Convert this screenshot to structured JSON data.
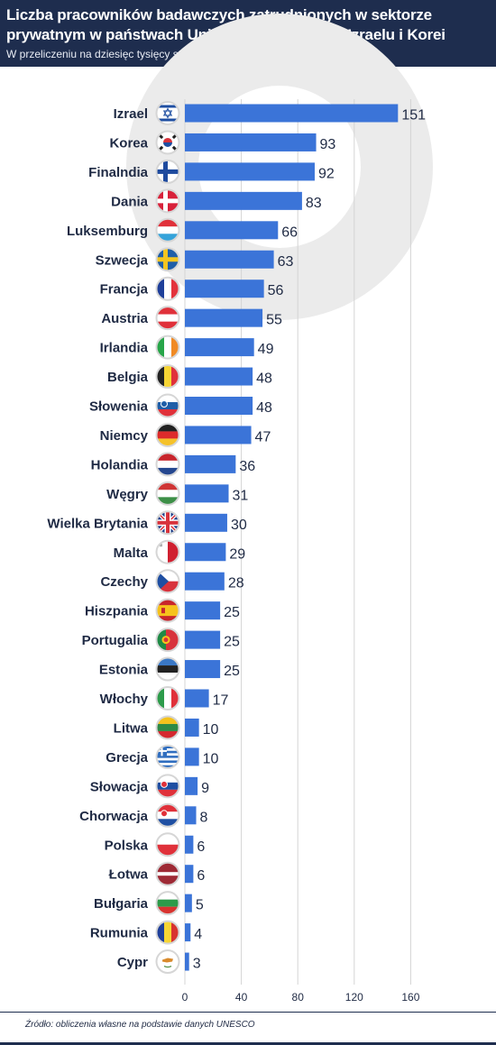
{
  "title": "Liczba pracowników badawczych zatrudnionych w sektorze prywatnym w państwach Unii Europejskiej oraz Izraelu i Korei",
  "subtitle": "W przeliczeniu na dziesięc tysięcy stanowisk pracy w 2011 roku",
  "source": "Źródło: obliczenia własne na podstawie danych UNESCO",
  "colors": {
    "bar": "#3b74d8",
    "header_bg": "#1e2d4e",
    "label": "#1f2a44",
    "grid": "#d4d4d4"
  },
  "chart_data": {
    "type": "bar",
    "orientation": "horizontal",
    "title": "Liczba pracowników badawczych zatrudnionych w sektorze prywatnym w państwach Unii Europejskiej oraz Izraelu i Korei",
    "subtitle": "W przeliczeniu na dziesięc tysięcy stanowisk pracy w 2011 roku",
    "xlabel": "",
    "ylabel": "",
    "xlim": [
      0,
      160
    ],
    "x_ticks": [
      0,
      40,
      80,
      120,
      160
    ],
    "grid": true,
    "categories": [
      "Izrael",
      "Korea",
      "Finalndia",
      "Dania",
      "Luksemburg",
      "Szwecja",
      "Francja",
      "Austria",
      "Irlandia",
      "Belgia",
      "Słowenia",
      "Niemcy",
      "Holandia",
      "Węgry",
      "Wielka Brytania",
      "Malta",
      "Czechy",
      "Hiszpania",
      "Portugalia",
      "Estonia",
      "Włochy",
      "Litwa",
      "Grecja",
      "Słowacja",
      "Chorwacja",
      "Polska",
      "Łotwa",
      "Bułgaria",
      "Rumunia",
      "Cypr"
    ],
    "values": [
      151,
      93,
      92,
      83,
      66,
      63,
      56,
      55,
      49,
      48,
      48,
      47,
      36,
      31,
      30,
      29,
      28,
      25,
      25,
      25,
      17,
      10,
      10,
      9,
      8,
      6,
      6,
      5,
      4,
      3
    ],
    "flags": [
      "israel-flag",
      "south-korea-flag",
      "finland-flag",
      "denmark-flag",
      "luxembourg-flag",
      "sweden-flag",
      "france-flag",
      "austria-flag",
      "ireland-flag",
      "belgium-flag",
      "slovenia-flag",
      "germany-flag",
      "netherlands-flag",
      "hungary-flag",
      "united-kingdom-flag",
      "malta-flag",
      "czech-flag",
      "spain-flag",
      "portugal-flag",
      "estonia-flag",
      "italy-flag",
      "lithuania-flag",
      "greece-flag",
      "slovakia-flag",
      "croatia-flag",
      "poland-flag",
      "latvia-flag",
      "bulgaria-flag",
      "romania-flag",
      "cyprus-flag"
    ]
  }
}
